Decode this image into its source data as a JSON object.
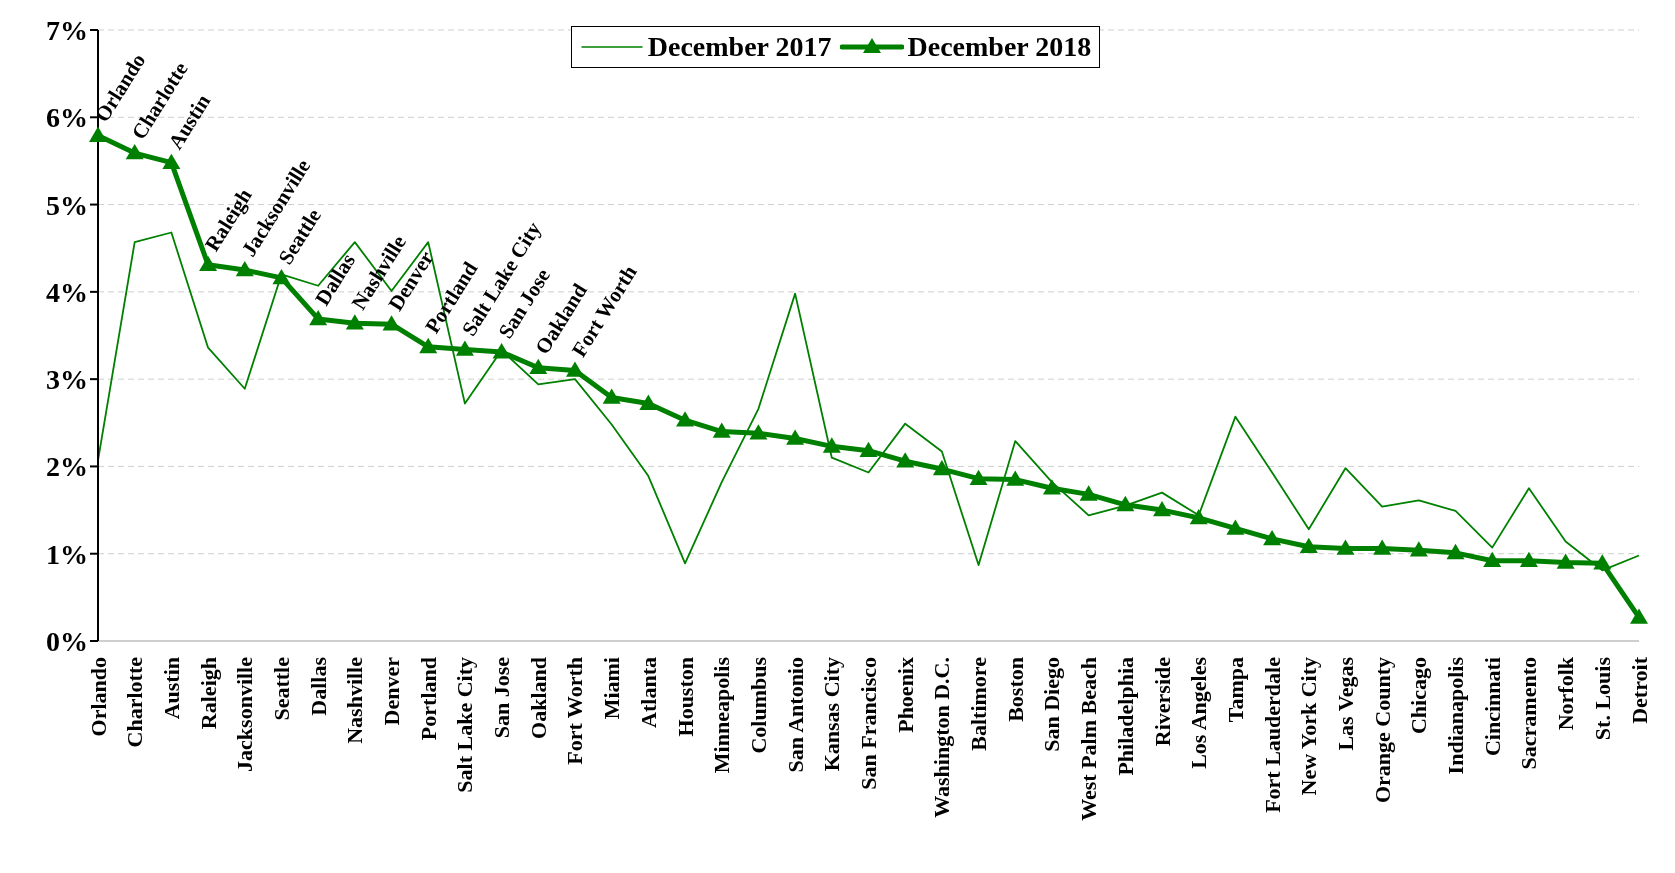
{
  "chart_data": {
    "type": "line",
    "categories": [
      "Orlando",
      "Charlotte",
      "Austin",
      "Raleigh",
      "Jacksonville",
      "Seattle",
      "Dallas",
      "Nashville",
      "Denver",
      "Portland",
      "Salt Lake City",
      "San Jose",
      "Oakland",
      "Fort Worth",
      "Miami",
      "Atlanta",
      "Houston",
      "Minneapolis",
      "Columbus",
      "San Antonio",
      "Kansas City",
      "San Francisco",
      "Phoenix",
      "Washington D.C.",
      "Baltimore",
      "Boston",
      "San Diego",
      "West Palm Beach",
      "Philadelphia",
      "Riverside",
      "Los Angeles",
      "Tampa",
      "Fort Lauderdale",
      "New York City",
      "Las Vegas",
      "Orange County",
      "Chicago",
      "Indianapolis",
      "Cincinnati",
      "Sacramento",
      "Norfolk",
      "St. Louis",
      "Detroit"
    ],
    "series": [
      {
        "name": "December 2017",
        "color": "#008000",
        "marker": "none",
        "values": [
          2.07,
          4.57,
          4.68,
          3.36,
          2.89,
          4.2,
          4.07,
          4.57,
          4.01,
          4.57,
          2.72,
          3.33,
          2.94,
          3.0,
          2.48,
          1.89,
          0.89,
          1.82,
          2.66,
          3.98,
          2.1,
          1.93,
          2.49,
          2.17,
          0.87,
          2.29,
          1.82,
          1.44,
          1.55,
          1.7,
          1.44,
          2.57,
          1.93,
          1.28,
          1.98,
          1.54,
          1.61,
          1.49,
          1.07,
          1.75,
          1.14,
          0.81,
          0.98
        ]
      },
      {
        "name": "December 2018",
        "color": "#008000",
        "marker": "triangle",
        "values": [
          5.79,
          5.59,
          5.48,
          4.31,
          4.25,
          4.16,
          3.69,
          3.64,
          3.63,
          3.37,
          3.34,
          3.31,
          3.13,
          3.1,
          2.79,
          2.72,
          2.53,
          2.4,
          2.38,
          2.32,
          2.23,
          2.18,
          2.06,
          1.97,
          1.86,
          1.85,
          1.75,
          1.68,
          1.56,
          1.5,
          1.41,
          1.29,
          1.17,
          1.08,
          1.06,
          1.06,
          1.04,
          1.01,
          0.92,
          0.92,
          0.9,
          0.89,
          0.27
        ]
      }
    ],
    "ylim": [
      0,
      7
    ],
    "yticks": [
      {
        "value": 0,
        "label": "0%"
      },
      {
        "value": 1,
        "label": "1%"
      },
      {
        "value": 2,
        "label": "2%"
      },
      {
        "value": 3,
        "label": "3%"
      },
      {
        "value": 4,
        "label": "4%"
      },
      {
        "value": 5,
        "label": "5%"
      },
      {
        "value": 6,
        "label": "6%"
      },
      {
        "value": 7,
        "label": "7%"
      }
    ],
    "grid": "y",
    "legend": "top",
    "annotations": [
      {
        "text": "Orlando",
        "x": "Orlando",
        "y": 5.79
      },
      {
        "text": "Charlotte",
        "x": "Charlotte",
        "y": 5.59
      },
      {
        "text": "Austin",
        "x": "Austin",
        "y": 5.48
      },
      {
        "text": "Raleigh",
        "x": "Raleigh",
        "y": 4.31
      },
      {
        "text": "Jacksonville",
        "x": "Jacksonville",
        "y": 4.25
      },
      {
        "text": "Seattle",
        "x": "Seattle",
        "y": 4.16
      },
      {
        "text": "Dallas",
        "x": "Dallas",
        "y": 3.69
      },
      {
        "text": "Nashville",
        "x": "Nashville",
        "y": 3.64
      },
      {
        "text": "Denver",
        "x": "Denver",
        "y": 3.63
      },
      {
        "text": "Portland",
        "x": "Portland",
        "y": 3.37
      },
      {
        "text": "Salt Lake City",
        "x": "Salt Lake City",
        "y": 3.34
      },
      {
        "text": "San Jose",
        "x": "San Jose",
        "y": 3.31
      },
      {
        "text": "Oakland",
        "x": "Oakland",
        "y": 3.13
      },
      {
        "text": "Fort Worth",
        "x": "Fort Worth",
        "y": 3.1
      }
    ]
  }
}
